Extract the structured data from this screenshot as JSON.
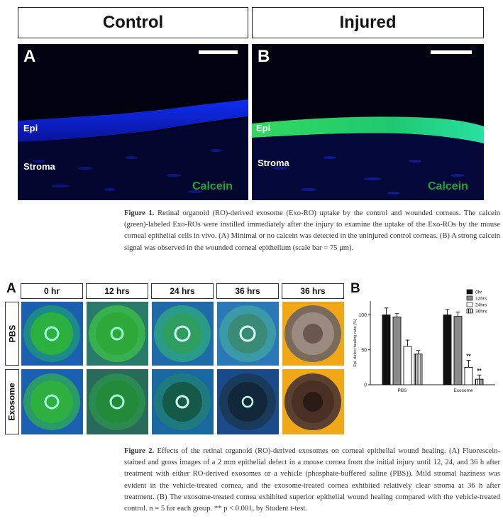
{
  "figure1": {
    "headers": {
      "control": "Control",
      "injured": "Injured"
    },
    "panel_a": {
      "label": "A",
      "epi": "Epi",
      "stroma": "Stroma",
      "stain": "Calcein"
    },
    "panel_b": {
      "label": "B",
      "epi": "Epi",
      "stroma": "Stroma",
      "stain": "Calcein"
    },
    "caption_label": "Figure 1.",
    "caption": "Retinal organoid (RO)-derived exosome (Exo-RO) uptake by the control and wounded corneas. The calcein (green)-labeled Exo-ROs were instilled immediately after the injury to examine the uptake of the Exo-ROs by the mouse corneal epithelial cells in vivo. (A) Minimal or no calcein was detected in the uninjured control corneas. (B) A strong calcein signal was observed in the wounded corneal epithelium (scale bar = 75 μm)."
  },
  "figure2": {
    "panel_a_label": "A",
    "panel_b_label": "B",
    "columns": [
      "0 hr",
      "12 hrs",
      "24 hrs",
      "36 hrs",
      "36 hrs"
    ],
    "rows": [
      "PBS",
      "Exosome"
    ],
    "caption_label": "Figure 2.",
    "caption": "Effects of the retinal organoid (RO)-derived exosomes on corneal epithelial wound healing. (A) Fluorescein-stained and gross images of a 2 mm epithelial defect in a mouse cornea from the initial injury until 12, 24, and 36 h after treatment with either RO-derived exosomes or a vehicle (phosphate-buffered saline (PBS)). Mild stromal haziness was evident in the vehicle-treated cornea, and the exosome-treated cornea exhibited relatively clear stroma at 36 h after treatment. (B) The exosome-treated cornea exhibited superior epithelial wound healing compared with the vehicle-treated control. n = 5 for each group. ** p < 0.001, by Student t-test."
  },
  "chart_data": {
    "type": "bar",
    "categories": [
      "PBS",
      "Exosome"
    ],
    "series": [
      {
        "name": "0hr",
        "values": [
          100,
          100
        ],
        "errors": [
          10,
          8
        ],
        "color": "#111111",
        "pattern": "solid"
      },
      {
        "name": "12hrs",
        "values": [
          97,
          98
        ],
        "errors": [
          5,
          6
        ],
        "color": "#8a8a8a",
        "pattern": "solid"
      },
      {
        "name": "24hrs",
        "values": [
          55,
          25
        ],
        "errors": [
          9,
          10
        ],
        "color": "#ffffff",
        "pattern": "open"
      },
      {
        "name": "36hrs",
        "values": [
          44,
          8
        ],
        "errors": [
          5,
          6
        ],
        "color": "#ffffff",
        "pattern": "vertical-stripes"
      }
    ],
    "significance": [
      {
        "category": "Exosome",
        "series": "24hrs",
        "label": "**"
      },
      {
        "category": "Exosome",
        "series": "36hrs",
        "label": "**"
      }
    ],
    "ylabel": "Epi. defect healing ratio (%)",
    "xlabel": "",
    "ylim": [
      0,
      120
    ],
    "yticks": [
      0,
      50,
      100
    ],
    "legend_position": "top-right"
  }
}
